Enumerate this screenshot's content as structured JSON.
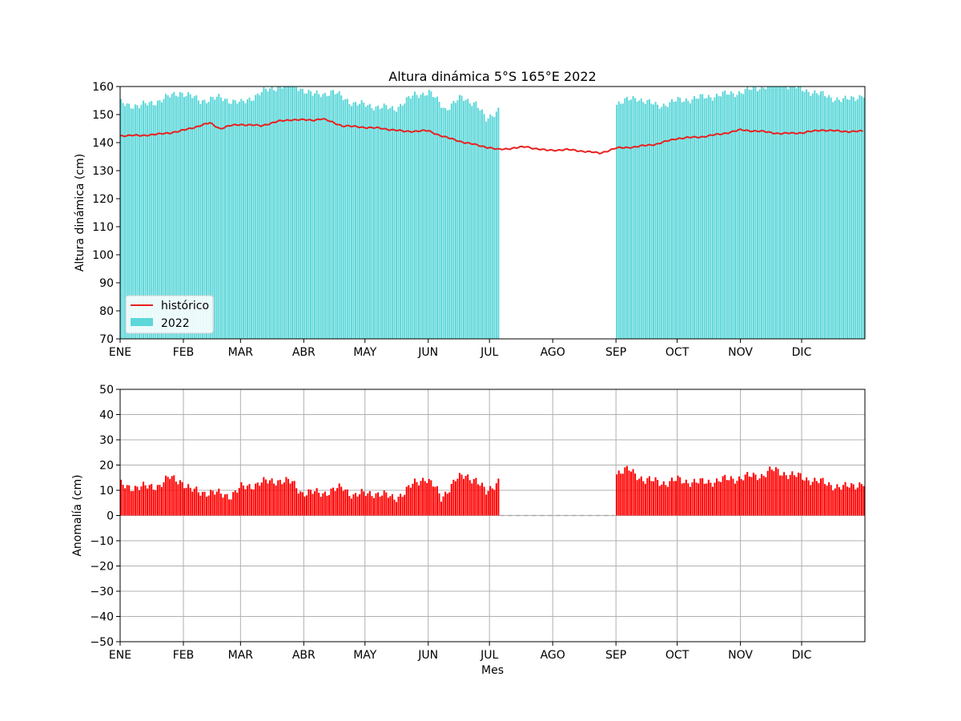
{
  "chart_data": [
    {
      "type": "bar",
      "title": "Altura dinámica 5°S 165°E 2022",
      "xlabel": "",
      "ylabel": "Altura dinámica (cm)",
      "ylim": [
        70,
        160
      ],
      "yticks": [
        70,
        80,
        90,
        100,
        110,
        120,
        130,
        140,
        150,
        160
      ],
      "month_labels": [
        "ENE",
        "FEB",
        "MAR",
        "ABR",
        "MAY",
        "JUN",
        "JUL",
        "AGO",
        "SEP",
        "OCT",
        "NOV",
        "DIC"
      ],
      "month_start_days": [
        1,
        32,
        60,
        91,
        121,
        152,
        182,
        213,
        244,
        274,
        305,
        335
      ],
      "xlim_days": [
        1,
        365
      ],
      "grid": false,
      "legend": {
        "position": "lower-left",
        "entries": [
          "histórico",
          "2022"
        ]
      },
      "series": [
        {
          "name": "2022",
          "kind": "bar",
          "color": "#5dd7d9",
          "days": [
            1,
            186,
            244,
            365
          ],
          "profile": [
            [
              1,
              154
            ],
            [
              10,
              153
            ],
            [
              20,
              155
            ],
            [
              30,
              158
            ],
            [
              40,
              155
            ],
            [
              50,
              156
            ],
            [
              60,
              154
            ],
            [
              70,
              158
            ],
            [
              78,
              160
            ],
            [
              85,
              161
            ],
            [
              95,
              157
            ],
            [
              105,
              158
            ],
            [
              115,
              154
            ],
            [
              125,
              153
            ],
            [
              135,
              152
            ],
            [
              145,
              157
            ],
            [
              152,
              158
            ],
            [
              160,
              152
            ],
            [
              168,
              156
            ],
            [
              175,
              154
            ],
            [
              180,
              148
            ],
            [
              186,
              152
            ],
            [
              244,
              154
            ],
            [
              254,
              156
            ],
            [
              264,
              153
            ],
            [
              274,
              155
            ],
            [
              285,
              156
            ],
            [
              295,
              157
            ],
            [
              305,
              158
            ],
            [
              315,
              160
            ],
            [
              325,
              161
            ],
            [
              335,
              159
            ],
            [
              345,
              157
            ],
            [
              355,
              155
            ],
            [
              365,
              157
            ]
          ]
        },
        {
          "name": "histórico",
          "kind": "line",
          "color": "#e8201f",
          "profile": [
            [
              1,
              142.5
            ],
            [
              10,
              142.5
            ],
            [
              20,
              143
            ],
            [
              30,
              144
            ],
            [
              40,
              146
            ],
            [
              45,
              147
            ],
            [
              50,
              145
            ],
            [
              55,
              146
            ],
            [
              60,
              146.5
            ],
            [
              70,
              146
            ],
            [
              78,
              147.5
            ],
            [
              85,
              148.2
            ],
            [
              95,
              148
            ],
            [
              100,
              148.5
            ],
            [
              110,
              146
            ],
            [
              120,
              145.5
            ],
            [
              130,
              145
            ],
            [
              140,
              144
            ],
            [
              152,
              144.2
            ],
            [
              160,
              142
            ],
            [
              170,
              140
            ],
            [
              180,
              138.5
            ],
            [
              186,
              137.5
            ],
            [
              200,
              138.5
            ],
            [
              210,
              137.2
            ],
            [
              220,
              137.5
            ],
            [
              230,
              136.8
            ],
            [
              236,
              136.2
            ],
            [
              244,
              138
            ],
            [
              254,
              138.5
            ],
            [
              264,
              139.5
            ],
            [
              274,
              141.5
            ],
            [
              285,
              142
            ],
            [
              295,
              143
            ],
            [
              305,
              144.5
            ],
            [
              315,
              144
            ],
            [
              325,
              143.2
            ],
            [
              335,
              143.5
            ],
            [
              345,
              144.5
            ],
            [
              355,
              144
            ],
            [
              365,
              144
            ]
          ]
        }
      ]
    },
    {
      "type": "bar",
      "title": "",
      "xlabel": "Mes",
      "ylabel": "Anomalía (cm)",
      "ylim": [
        -50,
        50
      ],
      "yticks": [
        -50,
        -40,
        -30,
        -20,
        -10,
        0,
        10,
        20,
        30,
        40,
        50
      ],
      "month_labels": [
        "ENE",
        "FEB",
        "MAR",
        "ABR",
        "MAY",
        "JUN",
        "JUL",
        "AGO",
        "SEP",
        "OCT",
        "NOV",
        "DIC"
      ],
      "month_start_days": [
        1,
        32,
        60,
        91,
        121,
        152,
        182,
        213,
        244,
        274,
        305,
        335
      ],
      "xlim_days": [
        1,
        365
      ],
      "grid": true,
      "series": [
        {
          "name": "",
          "kind": "bar",
          "color": "#ff0000",
          "days": [
            1,
            186,
            244,
            365
          ],
          "profile": [
            [
              1,
              12
            ],
            [
              10,
              11
            ],
            [
              20,
              12
            ],
            [
              25,
              15
            ],
            [
              30,
              14
            ],
            [
              35,
              10
            ],
            [
              45,
              9
            ],
            [
              55,
              8
            ],
            [
              60,
              11
            ],
            [
              70,
              13
            ],
            [
              78,
              14
            ],
            [
              85,
              13
            ],
            [
              90,
              9
            ],
            [
              100,
              9
            ],
            [
              110,
              11
            ],
            [
              115,
              8
            ],
            [
              125,
              9
            ],
            [
              135,
              7
            ],
            [
              140,
              9
            ],
            [
              145,
              13
            ],
            [
              150,
              15
            ],
            [
              155,
              11
            ],
            [
              158,
              7
            ],
            [
              165,
              14
            ],
            [
              170,
              16
            ],
            [
              175,
              14
            ],
            [
              180,
              9
            ],
            [
              186,
              14
            ],
            [
              244,
              17
            ],
            [
              250,
              18
            ],
            [
              258,
              14
            ],
            [
              268,
              13
            ],
            [
              274,
              14
            ],
            [
              285,
              13
            ],
            [
              295,
              14
            ],
            [
              305,
              15
            ],
            [
              315,
              16
            ],
            [
              320,
              18
            ],
            [
              325,
              17
            ],
            [
              335,
              15
            ],
            [
              345,
              13
            ],
            [
              355,
              11
            ],
            [
              365,
              13
            ]
          ]
        }
      ],
      "missing_range_days": [
        187,
        243
      ]
    }
  ]
}
